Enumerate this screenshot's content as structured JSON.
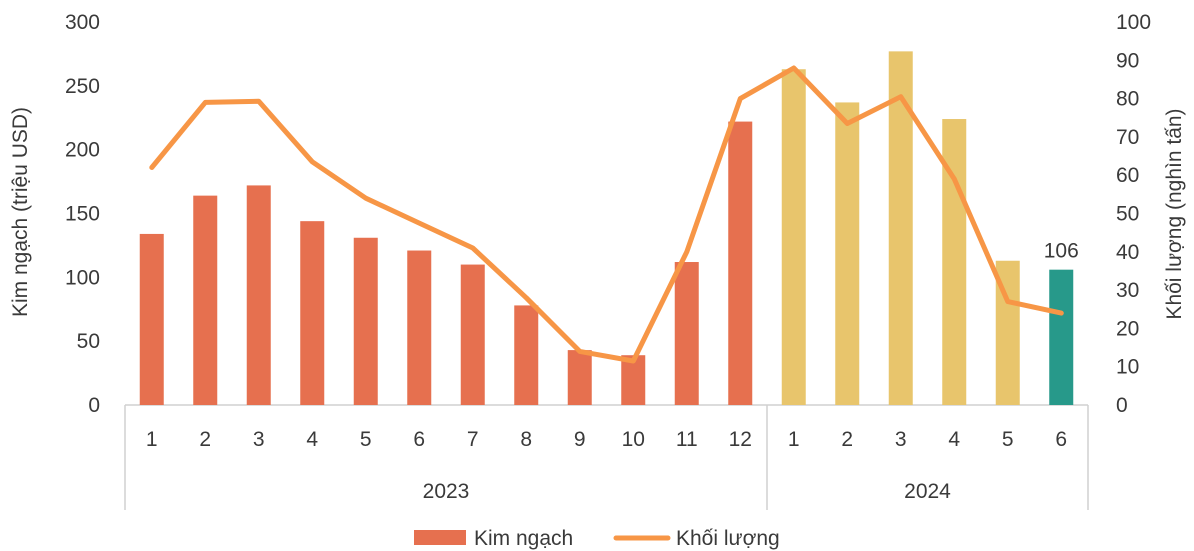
{
  "chart_data": {
    "type": "bar",
    "title": "",
    "ylabel": "Kim ngạch (triệu USD)",
    "y2label": "Khối lượng (nghìn tấn)",
    "ylim": [
      0,
      300
    ],
    "y2lim": [
      0,
      100
    ],
    "yticks": [
      "0",
      "50",
      "100",
      "150",
      "200",
      "250",
      "300"
    ],
    "y2ticks": [
      "0",
      "10",
      "20",
      "30",
      "40",
      "50",
      "60",
      "70",
      "80",
      "90",
      "100"
    ],
    "categories": [
      "1",
      "2",
      "3",
      "4",
      "5",
      "6",
      "7",
      "8",
      "9",
      "10",
      "11",
      "12",
      "1",
      "2",
      "3",
      "4",
      "5",
      "6"
    ],
    "groups": [
      {
        "label": "2023",
        "count": 12
      },
      {
        "label": "2024",
        "count": 6
      }
    ],
    "series": [
      {
        "name": "Kim ngạch",
        "type": "bar",
        "axis": "left",
        "values": [
          134,
          164,
          172,
          144,
          131,
          121,
          110,
          78,
          43,
          39,
          112,
          222,
          263,
          237,
          277,
          224,
          113,
          106
        ]
      },
      {
        "name": "Khối lượng",
        "type": "line",
        "axis": "right",
        "values": [
          62,
          79,
          79.3,
          63.5,
          54,
          47.5,
          41,
          28,
          14,
          11.5,
          40,
          80,
          88,
          73.5,
          80.5,
          59,
          27,
          24
        ]
      }
    ],
    "bar_colors": [
      "#e6704f",
      "#e6704f",
      "#e6704f",
      "#e6704f",
      "#e6704f",
      "#e6704f",
      "#e6704f",
      "#e6704f",
      "#e6704f",
      "#e6704f",
      "#e6704f",
      "#e6704f",
      "#e8c56c",
      "#e8c56c",
      "#e8c56c",
      "#e8c56c",
      "#e8c56c",
      "#27998a"
    ],
    "line_color": "#f79646",
    "data_labels": [
      {
        "index": 17,
        "text": "106"
      }
    ],
    "legend": {
      "position": "bottom",
      "items": [
        "Kim ngạch",
        "Khối lượng"
      ]
    },
    "grid": false
  }
}
